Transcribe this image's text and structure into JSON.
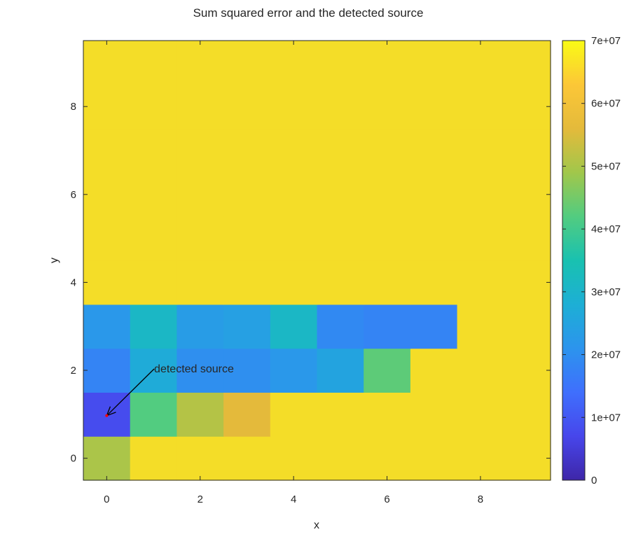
{
  "chart_data": {
    "type": "heatmap",
    "title": "Sum squared error and the detected source",
    "xlabel": "x",
    "ylabel": "y",
    "xlim": [
      -0.5,
      9.5
    ],
    "ylim": [
      -0.5,
      9.5
    ],
    "x_ticks": [
      0,
      2,
      4,
      6,
      8
    ],
    "y_ticks": [
      0,
      2,
      4,
      6,
      8
    ],
    "grid": false,
    "colormap": "parula",
    "colorbar": {
      "range": [
        0,
        70000000
      ],
      "ticks": [
        0,
        10000000,
        20000000,
        30000000,
        40000000,
        50000000,
        60000000,
        70000000
      ],
      "tick_labels": [
        "0",
        "1e+07",
        "2e+07",
        "3e+07",
        "4e+07",
        "5e+07",
        "6e+07",
        "7e+07"
      ]
    },
    "rows_y": [
      0,
      1,
      2,
      3,
      4,
      5,
      6,
      7,
      8,
      9
    ],
    "cols_x": [
      0,
      1,
      2,
      3,
      4,
      5,
      6,
      7,
      8,
      9
    ],
    "values": [
      [
        50000000,
        70000000,
        70000000,
        70000000,
        70000000,
        70000000,
        70000000,
        70000000,
        70000000,
        70000000
      ],
      [
        8000000,
        42000000,
        51000000,
        56000000,
        70000000,
        70000000,
        70000000,
        70000000,
        70000000,
        70000000
      ],
      [
        18000000,
        27000000,
        20000000,
        20000000,
        22000000,
        25000000,
        43000000,
        70000000,
        70000000,
        70000000
      ],
      [
        22000000,
        31000000,
        23000000,
        24000000,
        31000000,
        19000000,
        18000000,
        18000000,
        70000000,
        70000000
      ],
      [
        70000000,
        70000000,
        70000000,
        70000000,
        70000000,
        70000000,
        70000000,
        70000000,
        70000000,
        70000000
      ],
      [
        70000000,
        70000000,
        70000000,
        70000000,
        70000000,
        70000000,
        70000000,
        70000000,
        70000000,
        70000000
      ],
      [
        70000000,
        70000000,
        70000000,
        70000000,
        70000000,
        70000000,
        70000000,
        70000000,
        70000000,
        70000000
      ],
      [
        70000000,
        70000000,
        70000000,
        70000000,
        70000000,
        70000000,
        70000000,
        70000000,
        70000000,
        70000000
      ],
      [
        70000000,
        70000000,
        70000000,
        70000000,
        70000000,
        70000000,
        70000000,
        70000000,
        70000000,
        70000000
      ],
      [
        70000000,
        70000000,
        70000000,
        70000000,
        70000000,
        70000000,
        70000000,
        70000000,
        70000000,
        70000000
      ]
    ],
    "annotation": {
      "text": "detected source",
      "point": [
        0,
        1
      ],
      "text_at": [
        1,
        2
      ],
      "marker_color": "#ff0000",
      "arrow_color": "#000000"
    }
  }
}
